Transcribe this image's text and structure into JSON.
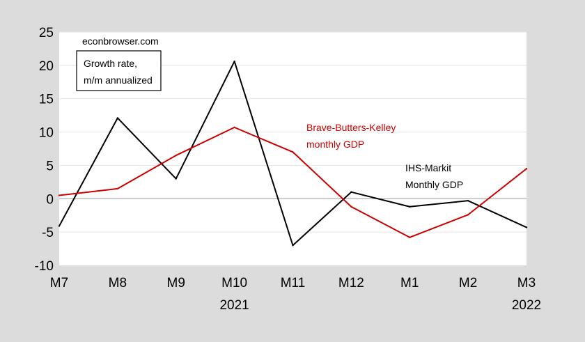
{
  "chart_data": {
    "type": "line",
    "categories": [
      "M7",
      "M8",
      "M9",
      "M10",
      "M11",
      "M12",
      "M1",
      "M2",
      "M3"
    ],
    "year_labels": [
      {
        "text": "2021",
        "category": "M10"
      },
      {
        "text": "2022",
        "category": "M3"
      }
    ],
    "ylim": [
      -10,
      25
    ],
    "y_ticks": [
      25,
      20,
      15,
      10,
      5,
      0,
      -5,
      -10
    ],
    "grid": "horizontal",
    "series": [
      {
        "name": "IHS-Markit Monthly GDP",
        "color": "#000000",
        "values": [
          -4.1,
          12.1,
          3.0,
          20.6,
          -7.0,
          1.0,
          -1.2,
          -0.3,
          -4.3
        ]
      },
      {
        "name": "Brave-Butters-Kelley monthly GDP",
        "color": "#cc0000",
        "values": [
          0.5,
          1.5,
          6.5,
          10.7,
          7.0,
          -1.2,
          -5.8,
          -2.4,
          4.5
        ]
      }
    ],
    "annotations": {
      "watermark": "econbrowser.com",
      "box_line1": "Growth rate,",
      "box_line2": "m/m annualized",
      "red_label_line1": "Brave-Butters-Kelley",
      "red_label_line2": "monthly GDP",
      "black_label_line1": "IHS-Markit",
      "black_label_line2": "Monthly GDP"
    }
  }
}
